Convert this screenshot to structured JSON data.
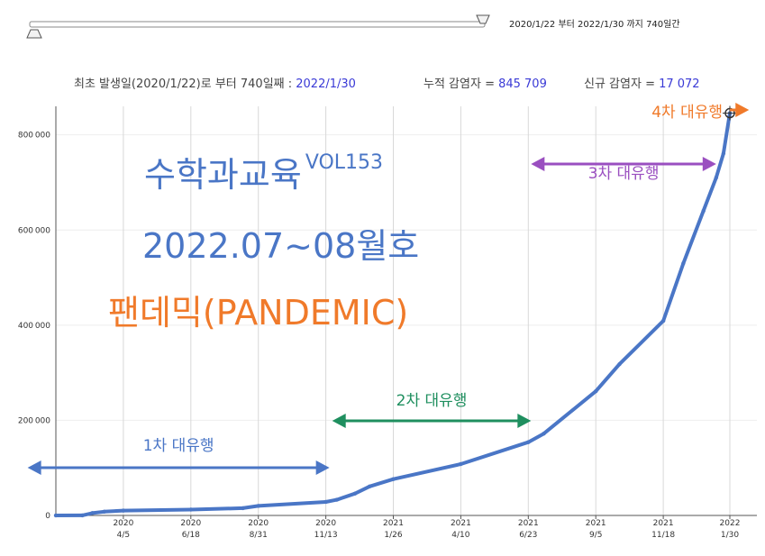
{
  "range_text": "2020/1/22 부터 2022/1/30 까지  740일간",
  "info": {
    "prefix": "최초 발생일(2020/1/22)로 부터 740일째 : ",
    "date": "2022/1/30",
    "cum_label": "누적 감염자 = ",
    "cum_value": "845 709",
    "new_label": "신규 감염자 = ",
    "new_value": "17 072"
  },
  "overlay": {
    "line1": "수학과교육",
    "line1_sup": "VOL153",
    "line2": "2022.07~08월호",
    "line3": "팬데믹(PANDEMIC)"
  },
  "waves": [
    {
      "label": "1차 대유행",
      "color": "#4a76c6",
      "start": "2019-12-22",
      "end": "2020-11-17"
    },
    {
      "label": "2차 대유행",
      "color": "#1f8f5f",
      "start": "2020-11-20",
      "end": "2021-06-26"
    },
    {
      "label": "3차 대유행",
      "color": "#9a4fc0",
      "start": "2021-06-26",
      "end": "2022-01-15"
    },
    {
      "label": "4차 대유행",
      "color": "#f07a2a",
      "start": "2022-01-30",
      "end": "2022-02-20"
    }
  ],
  "colors": {
    "series": "#4a76c6",
    "info_value": "#3a3ad6"
  },
  "chart_data": {
    "type": "line",
    "title": "",
    "xlabel": "",
    "ylabel": "",
    "xlim": [
      "2020-01-22",
      "2022-01-30"
    ],
    "ylim": [
      0,
      860000
    ],
    "grid": true,
    "y_ticks": [
      "0",
      "200000",
      "400000",
      "600000",
      "800000"
    ],
    "x_ticks": [
      {
        "date": "2020-04-05",
        "year": "2020",
        "md": "4/5"
      },
      {
        "date": "2020-06-18",
        "year": "2020",
        "md": "6/18"
      },
      {
        "date": "2020-08-31",
        "year": "2020",
        "md": "8/31"
      },
      {
        "date": "2020-11-13",
        "year": "2020",
        "md": "11/13"
      },
      {
        "date": "2021-01-26",
        "year": "2021",
        "md": "1/26"
      },
      {
        "date": "2021-04-10",
        "year": "2021",
        "md": "4/10"
      },
      {
        "date": "2021-06-23",
        "year": "2021",
        "md": "6/23"
      },
      {
        "date": "2021-09-05",
        "year": "2021",
        "md": "9/5"
      },
      {
        "date": "2021-11-18",
        "year": "2021",
        "md": "11/18"
      },
      {
        "date": "2022-01-30",
        "year": "2022",
        "md": "1/30"
      }
    ],
    "series": [
      {
        "x": [
          "2020-01-22",
          "2020-02-20",
          "2020-03-02",
          "2020-03-15",
          "2020-04-05",
          "2020-06-18",
          "2020-08-14",
          "2020-08-31",
          "2020-11-13",
          "2020-11-25",
          "2020-12-15",
          "2020-12-31",
          "2021-01-26",
          "2021-04-10",
          "2021-06-23",
          "2021-07-10",
          "2021-09-05",
          "2021-10-01",
          "2021-11-18",
          "2021-12-10",
          "2022-01-01",
          "2022-01-15",
          "2022-01-23",
          "2022-01-30"
        ],
        "y": [
          0,
          100,
          5000,
          8000,
          10200,
          12300,
          15300,
          20000,
          28500,
          33000,
          46000,
          61000,
          76400,
          108000,
          154000,
          172000,
          261000,
          318000,
          409000,
          530000,
          640000,
          710000,
          761000,
          845709
        ]
      }
    ],
    "highlight_point": {
      "x": "2022-01-30",
      "y": 845709
    }
  }
}
